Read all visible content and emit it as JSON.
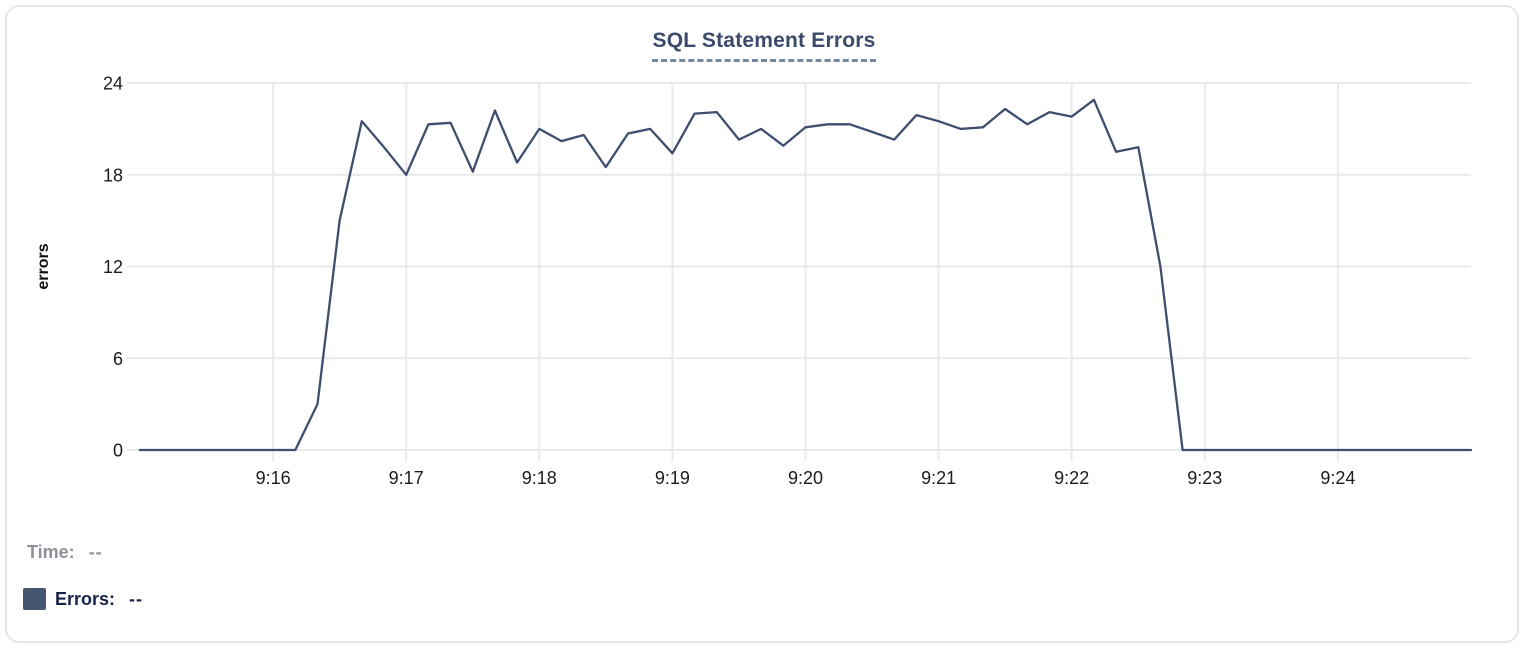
{
  "chart": {
    "title": "SQL Statement Errors",
    "ylabel": "errors"
  },
  "legend": {
    "time_label": "Time:",
    "time_value": "--",
    "errors_label": "Errors:",
    "errors_value": "--"
  },
  "colors": {
    "line": "#3e4e6e",
    "swatch": "#455670",
    "grid": "#e9e9eb",
    "tick_label": "#1a1c1f",
    "axis_label": "#0d0e10",
    "title": "#3a4a6b",
    "time_text": "#8d9199",
    "errors_text": "#15224a"
  },
  "chart_data": {
    "type": "line",
    "title": "SQL Statement Errors",
    "xlabel": "",
    "ylabel": "errors",
    "ylim": [
      0,
      24
    ],
    "yticks": [
      0,
      6,
      12,
      18,
      24
    ],
    "xlim": [
      "9:15:00",
      "9:25:00"
    ],
    "xticks": [
      "9:16",
      "9:17",
      "9:18",
      "9:19",
      "9:20",
      "9:21",
      "9:22",
      "9:23",
      "9:24"
    ],
    "grid": true,
    "legend_position": "bottom-left",
    "interval_seconds": 10,
    "series": [
      {
        "name": "Errors",
        "start": "9:15:00",
        "values": [
          0,
          0,
          0,
          0,
          0,
          0,
          0,
          0,
          3,
          15,
          21.5,
          19.8,
          18,
          21.3,
          21.4,
          18.2,
          22.2,
          18.8,
          21,
          20.2,
          20.6,
          18.5,
          20.7,
          21,
          19.4,
          22,
          22.1,
          20.3,
          21,
          19.9,
          21.1,
          21.3,
          21.3,
          20.8,
          20.3,
          21.9,
          21.5,
          21,
          21.1,
          22.3,
          21.3,
          22.1,
          21.8,
          22.9,
          19.5,
          19.8,
          12,
          0,
          0,
          0,
          0,
          0,
          0,
          0,
          0,
          0,
          0,
          0,
          0,
          0,
          0
        ]
      }
    ]
  }
}
